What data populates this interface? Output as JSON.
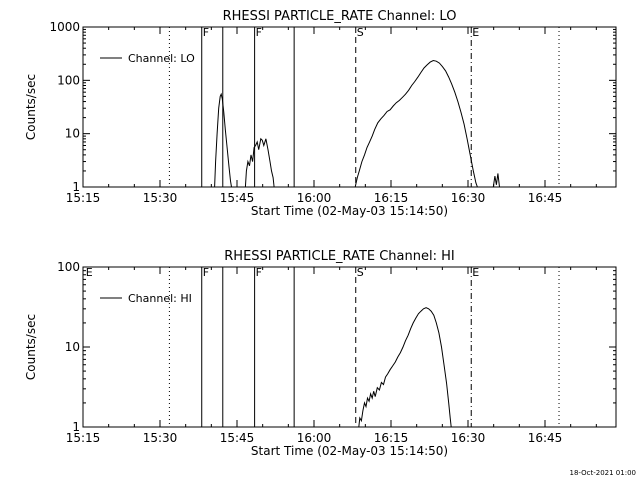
{
  "footer": {
    "timestamp": "18-Oct-2021 01:00"
  },
  "chart_data": [
    {
      "type": "line",
      "title": "RHESSI PARTICLE_RATE Channel: LO",
      "xlabel": "Start Time (02-May-03 15:14:50)",
      "ylabel": "Counts/sec",
      "yscale": "log",
      "xlim_minutes": [
        0.17,
        104
      ],
      "ylim": [
        1,
        1000
      ],
      "x_ticks": [
        {
          "t": 0.17,
          "label": "15:15"
        },
        {
          "t": 15.17,
          "label": "15:30"
        },
        {
          "t": 30.17,
          "label": "15:45"
        },
        {
          "t": 45.17,
          "label": "16:00"
        },
        {
          "t": 60.17,
          "label": "16:15"
        },
        {
          "t": 75.17,
          "label": "16:30"
        },
        {
          "t": 90.17,
          "label": "16:45"
        }
      ],
      "y_ticks": [
        {
          "v": 1,
          "label": "1"
        },
        {
          "v": 10,
          "label": "10"
        },
        {
          "v": 100,
          "label": "100"
        },
        {
          "v": 1000,
          "label": "1000"
        }
      ],
      "legend": "Channel: LO",
      "legend_position": "top-left",
      "markers": [
        {
          "t": 17.0,
          "style": "dotted",
          "label": ""
        },
        {
          "t": 23.3,
          "style": "solid",
          "label": "F"
        },
        {
          "t": 27.4,
          "style": "solid",
          "label": ""
        },
        {
          "t": 33.6,
          "style": "solid",
          "label": "F"
        },
        {
          "t": 41.3,
          "style": "solid",
          "label": ""
        },
        {
          "t": 53.3,
          "style": "dashed",
          "label": "S"
        },
        {
          "t": 75.8,
          "style": "dashdot",
          "label": "E"
        },
        {
          "t": 92.9,
          "style": "dotted",
          "label": ""
        }
      ],
      "series": [
        {
          "name": "Channel: LO",
          "points": [
            [
              25.8,
              1
            ],
            [
              26.0,
              3
            ],
            [
              26.3,
              10
            ],
            [
              26.6,
              30
            ],
            [
              26.9,
              50
            ],
            [
              27.1,
              55
            ],
            [
              27.3,
              45
            ],
            [
              27.6,
              25
            ],
            [
              27.9,
              12
            ],
            [
              28.2,
              6
            ],
            [
              28.6,
              2.5
            ],
            [
              28.9,
              1.3
            ],
            [
              29.1,
              1
            ],
            null,
            [
              31.8,
              1
            ],
            [
              32.0,
              2
            ],
            [
              32.3,
              3
            ],
            [
              32.6,
              2.5
            ],
            [
              32.9,
              4
            ],
            [
              33.2,
              3
            ],
            [
              33.5,
              5.5
            ],
            [
              33.8,
              6
            ],
            [
              34.1,
              7
            ],
            [
              34.4,
              5
            ],
            [
              34.8,
              8
            ],
            [
              35.1,
              7.5
            ],
            [
              35.4,
              6
            ],
            [
              35.8,
              8
            ],
            [
              36.2,
              5
            ],
            [
              36.6,
              3
            ],
            [
              36.9,
              2
            ],
            [
              37.2,
              1.5
            ],
            [
              37.4,
              1
            ],
            null,
            [
              53.2,
              1
            ],
            [
              53.6,
              1.5
            ],
            [
              54.0,
              2
            ],
            [
              54.5,
              3
            ],
            [
              55.0,
              4
            ],
            [
              55.5,
              5.5
            ],
            [
              56.0,
              7
            ],
            [
              56.5,
              9
            ],
            [
              57.0,
              12
            ],
            [
              57.6,
              16
            ],
            [
              58.2,
              19
            ],
            [
              58.8,
              22
            ],
            [
              59.4,
              26
            ],
            [
              60.0,
              28
            ],
            [
              60.6,
              33
            ],
            [
              61.2,
              38
            ],
            [
              61.8,
              42
            ],
            [
              62.4,
              48
            ],
            [
              63.0,
              55
            ],
            [
              63.6,
              65
            ],
            [
              64.2,
              80
            ],
            [
              64.8,
              95
            ],
            [
              65.4,
              115
            ],
            [
              66.0,
              140
            ],
            [
              66.6,
              170
            ],
            [
              67.2,
              195
            ],
            [
              67.8,
              220
            ],
            [
              68.4,
              235
            ],
            [
              69.0,
              228
            ],
            [
              69.6,
              210
            ],
            [
              70.2,
              180
            ],
            [
              70.8,
              150
            ],
            [
              71.4,
              115
            ],
            [
              72.0,
              85
            ],
            [
              72.6,
              60
            ],
            [
              73.2,
              40
            ],
            [
              73.8,
              25
            ],
            [
              74.4,
              15
            ],
            [
              75.0,
              8
            ],
            [
              75.6,
              4
            ],
            [
              76.2,
              2
            ],
            [
              76.7,
              1.2
            ],
            [
              77.0,
              1
            ],
            null,
            [
              80.1,
              1
            ],
            [
              80.4,
              1.6
            ],
            [
              80.7,
              1.1
            ],
            [
              81.0,
              1.8
            ],
            [
              81.3,
              1
            ]
          ]
        }
      ]
    },
    {
      "type": "line",
      "title": "RHESSI PARTICLE_RATE Channel: HI",
      "xlabel": "Start Time (02-May-03 15:14:50)",
      "ylabel": "Counts/sec",
      "yscale": "log",
      "xlim_minutes": [
        0.17,
        104
      ],
      "ylim": [
        1,
        100
      ],
      "x_ticks": [
        {
          "t": 0.17,
          "label": "15:15"
        },
        {
          "t": 15.17,
          "label": "15:30"
        },
        {
          "t": 30.17,
          "label": "15:45"
        },
        {
          "t": 45.17,
          "label": "16:00"
        },
        {
          "t": 60.17,
          "label": "16:15"
        },
        {
          "t": 75.17,
          "label": "16:30"
        },
        {
          "t": 90.17,
          "label": "16:45"
        }
      ],
      "y_ticks": [
        {
          "v": 1,
          "label": "1"
        },
        {
          "v": 10,
          "label": "10"
        },
        {
          "v": 100,
          "label": "100"
        }
      ],
      "legend": "Channel: HI",
      "legend_position": "top-left",
      "markers": [
        {
          "t": 0.5,
          "style": "none",
          "label": "E"
        },
        {
          "t": 17.0,
          "style": "dotted",
          "label": ""
        },
        {
          "t": 23.3,
          "style": "solid",
          "label": "F"
        },
        {
          "t": 27.4,
          "style": "solid",
          "label": ""
        },
        {
          "t": 33.6,
          "style": "solid",
          "label": "F"
        },
        {
          "t": 41.3,
          "style": "solid",
          "label": ""
        },
        {
          "t": 53.3,
          "style": "dashed",
          "label": "S"
        },
        {
          "t": 75.8,
          "style": "dashdot",
          "label": "E"
        },
        {
          "t": 92.9,
          "style": "dotted",
          "label": ""
        }
      ],
      "series": [
        {
          "name": "Channel: HI",
          "points": [
            [
              53.9,
              1
            ],
            [
              54.1,
              1.3
            ],
            [
              54.4,
              1.2
            ],
            [
              54.7,
              1.6
            ],
            [
              55.0,
              2
            ],
            [
              55.3,
              1.8
            ],
            [
              55.6,
              2.3
            ],
            [
              55.9,
              2.1
            ],
            [
              56.2,
              2.6
            ],
            [
              56.5,
              2.3
            ],
            [
              56.8,
              2.8
            ],
            [
              57.1,
              2.4
            ],
            [
              57.5,
              3.1
            ],
            [
              57.9,
              2.9
            ],
            [
              58.3,
              3.6
            ],
            [
              58.7,
              3.4
            ],
            [
              59.1,
              4.2
            ],
            [
              59.5,
              4.6
            ],
            [
              60.0,
              5.2
            ],
            [
              60.5,
              5.8
            ],
            [
              61.0,
              6.5
            ],
            [
              61.5,
              7.5
            ],
            [
              62.0,
              8.5
            ],
            [
              62.5,
              10
            ],
            [
              63.0,
              12
            ],
            [
              63.5,
              14
            ],
            [
              64.0,
              17
            ],
            [
              64.5,
              20
            ],
            [
              65.0,
              23
            ],
            [
              65.5,
              26
            ],
            [
              66.0,
              28
            ],
            [
              66.5,
              30
            ],
            [
              67.0,
              31
            ],
            [
              67.5,
              30
            ],
            [
              68.0,
              28
            ],
            [
              68.5,
              25
            ],
            [
              69.0,
              20
            ],
            [
              69.5,
              15
            ],
            [
              70.0,
              10
            ],
            [
              70.5,
              6
            ],
            [
              71.0,
              3.5
            ],
            [
              71.4,
              2
            ],
            [
              71.7,
              1.3
            ],
            [
              71.9,
              1
            ]
          ]
        }
      ]
    }
  ]
}
